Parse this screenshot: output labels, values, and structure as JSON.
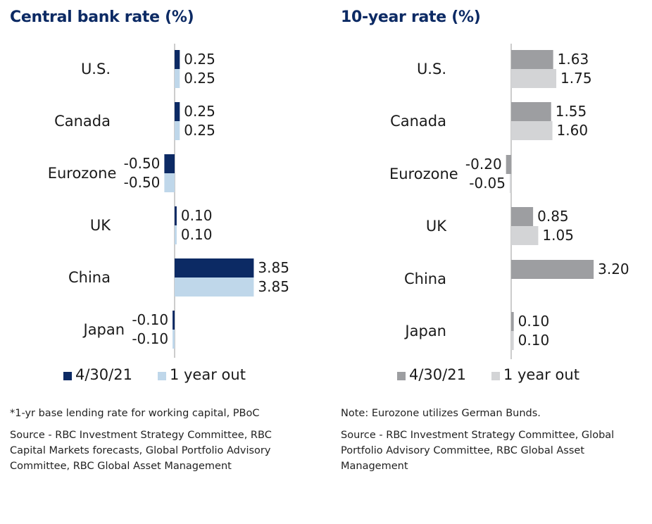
{
  "colors": {
    "title": "#0c2a64",
    "axis": "#b0b0b0",
    "left_current": "#0c2a64",
    "left_future": "#bfd7ea",
    "right_current": "#9d9ea1",
    "right_future": "#d3d4d6"
  },
  "chart_data": [
    {
      "type": "bar",
      "orientation": "horizontal",
      "title": "Central bank rate (%)",
      "categories": [
        "U.S.",
        "Canada",
        "Eurozone",
        "UK",
        "China",
        "Japan"
      ],
      "series": [
        {
          "name": "4/30/21",
          "values": [
            0.25,
            0.25,
            -0.5,
            0.1,
            3.85,
            -0.1
          ],
          "labels": [
            "0.25",
            "0.25",
            "-0.50",
            "0.10",
            "3.85",
            "-0.10"
          ]
        },
        {
          "name": "1 year out",
          "values": [
            0.25,
            0.25,
            -0.5,
            0.1,
            3.85,
            -0.1
          ],
          "labels": [
            "0.25",
            "0.25",
            "-0.50",
            "0.10",
            "3.85",
            "-0.10"
          ]
        }
      ],
      "xlim": [
        -0.6,
        4.2
      ],
      "legend_position": "bottom",
      "grid": false,
      "notes": [
        "*1-yr base lending rate for working capital, PBoC",
        "Source - RBC Investment Strategy Committee, RBC Capital Markets forecasts, Global Portfolio Advisory Committee, RBC Global Asset Management"
      ]
    },
    {
      "type": "bar",
      "orientation": "horizontal",
      "title": "10-year rate (%)",
      "categories": [
        "U.S.",
        "Canada",
        "Eurozone",
        "UK",
        "China",
        "Japan"
      ],
      "series": [
        {
          "name": "4/30/21",
          "values": [
            1.63,
            1.55,
            -0.2,
            0.85,
            3.2,
            0.1
          ],
          "labels": [
            "1.63",
            "1.55",
            "-0.20",
            "0.85",
            "3.20",
            "0.10"
          ]
        },
        {
          "name": "1 year out",
          "values": [
            1.75,
            1.6,
            -0.05,
            1.05,
            null,
            0.1
          ],
          "labels": [
            "1.75",
            "1.60",
            "-0.05",
            "1.05",
            "",
            "0.10"
          ]
        }
      ],
      "xlim": [
        -0.6,
        3.5
      ],
      "legend_position": "bottom",
      "grid": false,
      "notes": [
        "Note: Eurozone utilizes German Bunds.",
        "Source - RBC Investment Strategy Committee, Global Portfolio Advisory Committee, RBC Global Asset Management"
      ]
    }
  ]
}
